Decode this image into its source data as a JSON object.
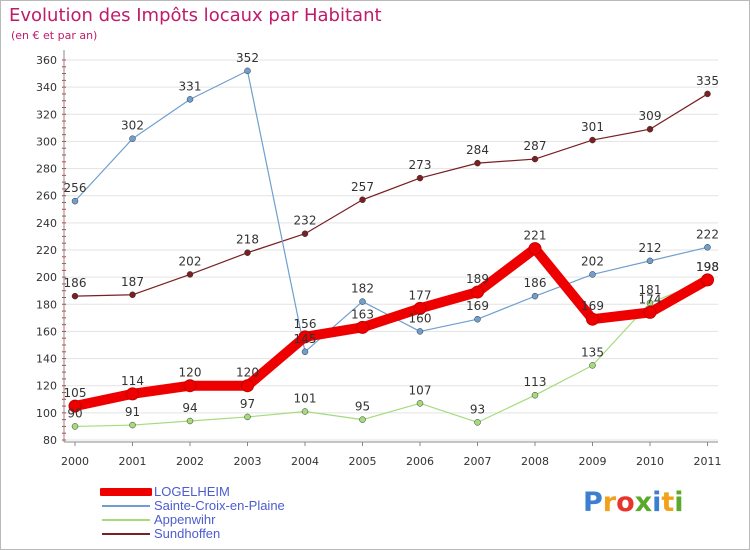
{
  "chart_data": {
    "type": "line",
    "title": "Evolution des Impôts locaux par Habitant",
    "subtitle": "(en € et par an)",
    "xlabel": "",
    "ylabel": "",
    "ylim": [
      80,
      360
    ],
    "yticks": [
      80,
      100,
      120,
      140,
      160,
      180,
      200,
      220,
      240,
      260,
      280,
      300,
      320,
      340,
      360
    ],
    "categories": [
      "2000",
      "2001",
      "2002",
      "2003",
      "2004",
      "2005",
      "2006",
      "2007",
      "2008",
      "2009",
      "2010",
      "2011"
    ],
    "series": [
      {
        "name": "Sundhoffen",
        "color": "#7a1f22",
        "values": [
          186,
          187,
          202,
          218,
          232,
          257,
          273,
          284,
          287,
          301,
          309,
          335
        ]
      },
      {
        "name": "Sainte-Croix-en-Plaine",
        "color": "#6f9fd0",
        "values": [
          256,
          302,
          331,
          352,
          145,
          182,
          160,
          169,
          186,
          202,
          212,
          222
        ]
      },
      {
        "name": "Appenwihr",
        "color": "#a6db7c",
        "values": [
          90,
          91,
          94,
          97,
          101,
          95,
          107,
          93,
          113,
          135,
          181,
          198
        ]
      },
      {
        "name": "LOGELHEIM",
        "color": "#ee0000",
        "values": [
          105,
          114,
          120,
          120,
          156,
          163,
          177,
          189,
          221,
          169,
          174,
          198
        ]
      }
    ],
    "data_labels": {
      "Sundhoffen": [
        "186",
        "187",
        "202",
        "218",
        "232",
        "257",
        "273",
        "284",
        "287",
        "301",
        "309",
        "335"
      ],
      "Sainte-Croix-en-Plaine": [
        "256",
        "302",
        "331",
        "352",
        "145",
        "182",
        "160",
        "169",
        "186",
        "202",
        "212",
        "222"
      ],
      "Appenwihr": [
        "90",
        "91",
        "94",
        "97",
        "101",
        "95",
        "107",
        "93",
        "113",
        "135",
        "181",
        "198"
      ],
      "LOGELHEIM": [
        "105",
        "114",
        "120",
        "120",
        "156",
        "163",
        "177",
        "189",
        "221",
        "169",
        "174",
        "198"
      ]
    },
    "legend": [
      "LOGELHEIM",
      "Sainte-Croix-en-Plaine",
      "Appenwihr",
      "Sundhoffen"
    ]
  },
  "branding": {
    "logo_letters": [
      {
        "char": "P",
        "color": "#3b7fd0"
      },
      {
        "char": "r",
        "color": "#f2a21a"
      },
      {
        "char": "o",
        "color": "#e8352b"
      },
      {
        "char": "x",
        "color": "#5aa92a"
      },
      {
        "char": "i",
        "color": "#3b7fd0"
      },
      {
        "char": "t",
        "color": "#f2a21a"
      },
      {
        "char": "i",
        "color": "#5aa92a"
      }
    ]
  }
}
